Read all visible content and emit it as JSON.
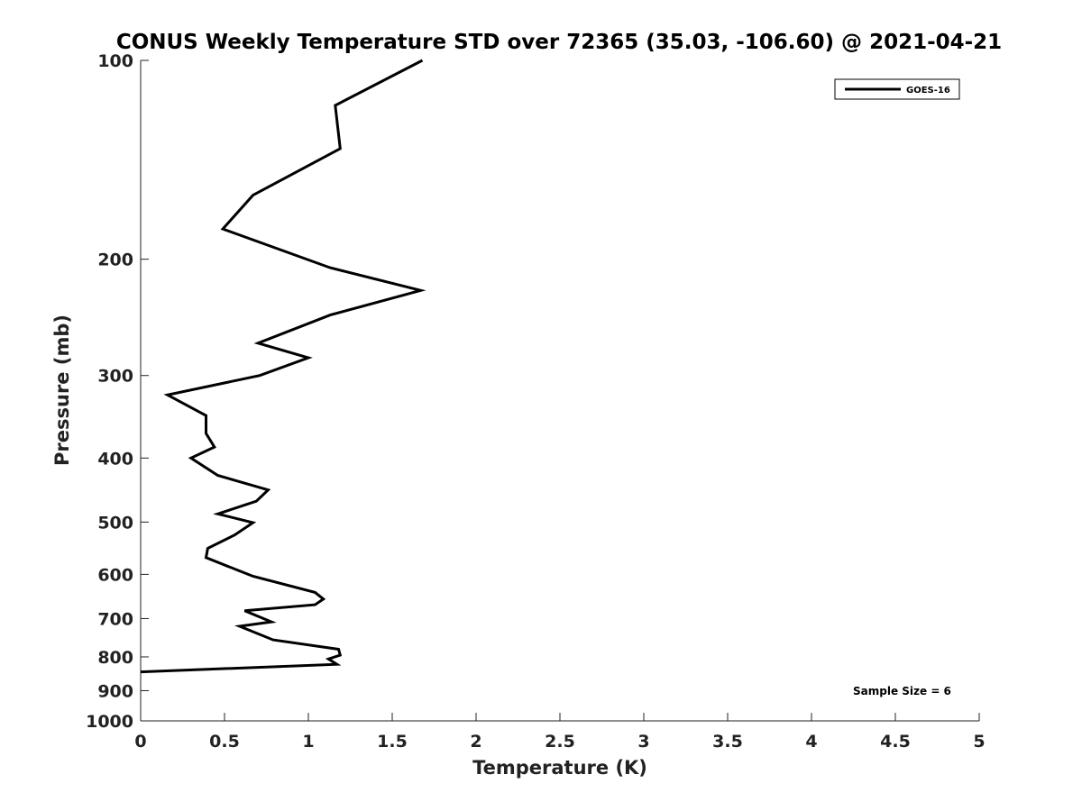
{
  "chart_data": {
    "type": "line",
    "title": "CONUS Weekly Temperature STD over 72365 (35.03, -106.60) @ 2021-04-21",
    "xlabel": "Temperature (K)",
    "ylabel": "Pressure (mb)",
    "xlim": [
      0,
      5
    ],
    "ylim": [
      100,
      1000
    ],
    "y_scale": "log",
    "y_reversed": true,
    "x_ticks": [
      0,
      0.5,
      1,
      1.5,
      2,
      2.5,
      3,
      3.5,
      4,
      4.5,
      5
    ],
    "x_tick_labels": [
      "0",
      "0.5",
      "1",
      "1.5",
      "2",
      "2.5",
      "3",
      "3.5",
      "4",
      "4.5",
      "5"
    ],
    "y_ticks": [
      100,
      200,
      300,
      400,
      500,
      600,
      700,
      800,
      900,
      1000
    ],
    "y_tick_labels": [
      "100",
      "200",
      "300",
      "400",
      "500",
      "600",
      "700",
      "800",
      "900",
      "1000"
    ],
    "grid": false,
    "legend_position": "top-right",
    "annotation": "Sample Size = 6",
    "series": [
      {
        "name": "GOES-16",
        "color": "#000000",
        "points": [
          [
            1.68,
            100
          ],
          [
            1.16,
            117
          ],
          [
            1.19,
            136
          ],
          [
            0.67,
            160
          ],
          [
            0.49,
            180
          ],
          [
            1.13,
            206
          ],
          [
            1.67,
            223
          ],
          [
            1.13,
            243
          ],
          [
            0.7,
            268
          ],
          [
            1.0,
            282
          ],
          [
            0.71,
            300
          ],
          [
            0.16,
            321
          ],
          [
            0.39,
            345
          ],
          [
            0.39,
            367
          ],
          [
            0.44,
            385
          ],
          [
            0.3,
            400
          ],
          [
            0.46,
            425
          ],
          [
            0.76,
            447
          ],
          [
            0.69,
            465
          ],
          [
            0.46,
            486
          ],
          [
            0.67,
            501
          ],
          [
            0.56,
            523
          ],
          [
            0.4,
            548
          ],
          [
            0.39,
            566
          ],
          [
            0.67,
            604
          ],
          [
            1.04,
            639
          ],
          [
            1.09,
            654
          ],
          [
            1.04,
            667
          ],
          [
            0.62,
            681
          ],
          [
            0.78,
            708
          ],
          [
            0.59,
            719
          ],
          [
            0.79,
            754
          ],
          [
            1.18,
            779
          ],
          [
            1.19,
            795
          ],
          [
            1.12,
            806
          ],
          [
            1.17,
            821
          ],
          [
            0.0,
            843
          ]
        ]
      }
    ]
  }
}
